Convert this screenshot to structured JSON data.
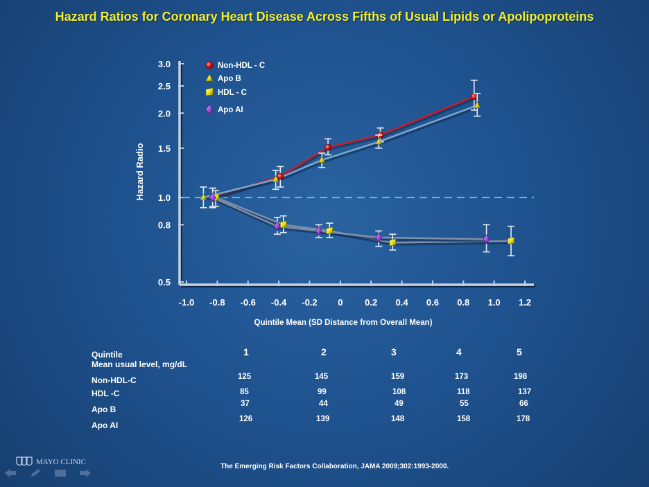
{
  "title": "Hazard Ratios for Coronary Heart Disease Across Fifths of Usual Lipids or Apolipoproteins",
  "chart_data": {
    "type": "line",
    "ylabel": "Hazard Radio",
    "xlabel": "Quintile Mean (SD Distance from Overall Mean)",
    "y_scale": "log",
    "ylim": [
      0.5,
      3.0
    ],
    "xlim": [
      -1.0,
      1.2
    ],
    "y_ticks": [
      "0.5",
      "0.8",
      "1.0",
      "1.5",
      "2.0",
      "2.5",
      "3.0"
    ],
    "y_tick_values": [
      0.5,
      0.8,
      1.0,
      1.5,
      2.0,
      2.5,
      3.0
    ],
    "x_ticks": [
      "-1.0",
      "-0.8",
      "-0.6",
      "-0.4",
      "-0.2",
      "0",
      "0.2",
      "0.4",
      "0.6",
      "0.8",
      "1.0",
      "1.2"
    ],
    "x_tick_values": [
      -1.0,
      -0.8,
      -0.6,
      -0.4,
      -0.2,
      0,
      0.2,
      0.4,
      0.6,
      0.8,
      1.0,
      1.2
    ],
    "reference_line": 1.0,
    "legend_position": "top-left",
    "series": [
      {
        "name": "Non-HDL - C",
        "marker": "circle",
        "color": "#d81e1e",
        "line_color": "#c41f2e",
        "x": [
          -0.83,
          -0.39,
          -0.08,
          0.26,
          0.87
        ],
        "y": [
          1.0,
          1.19,
          1.51,
          1.67,
          2.29
        ],
        "ci_low": [
          0.92,
          1.09,
          1.42,
          1.58,
          2.05
        ],
        "ci_high": [
          1.08,
          1.29,
          1.62,
          1.77,
          2.62
        ]
      },
      {
        "name": "Apo B",
        "marker": "triangle",
        "color": "#e8df1a",
        "line_color": "#7aa6cf",
        "x": [
          -0.89,
          -0.42,
          -0.12,
          0.25,
          0.89
        ],
        "y": [
          1.0,
          1.16,
          1.36,
          1.58,
          2.13
        ],
        "ci_low": [
          0.92,
          1.07,
          1.28,
          1.5,
          1.95
        ],
        "ci_high": [
          1.09,
          1.25,
          1.44,
          1.67,
          2.35
        ]
      },
      {
        "name": "HDL - C",
        "marker": "square",
        "color": "#e8ec1c",
        "line_color": "#7f8fa8",
        "x": [
          -0.81,
          -0.37,
          -0.07,
          0.34,
          1.11
        ],
        "y": [
          1.0,
          0.8,
          0.76,
          0.69,
          0.7
        ],
        "ci_low": [
          0.93,
          0.75,
          0.72,
          0.65,
          0.62
        ],
        "ci_high": [
          1.06,
          0.86,
          0.81,
          0.74,
          0.79
        ]
      },
      {
        "name": "Apo AI",
        "marker": "diamond",
        "color": "#a64de0",
        "line_color": "#7f8fa8",
        "x": [
          -0.83,
          -0.41,
          -0.14,
          0.25,
          0.95
        ],
        "y": [
          1.0,
          0.79,
          0.76,
          0.72,
          0.71
        ],
        "ci_low": [
          0.93,
          0.74,
          0.72,
          0.67,
          0.64
        ],
        "ci_high": [
          1.08,
          0.85,
          0.8,
          0.76,
          0.8
        ]
      }
    ]
  },
  "table": {
    "quintile_label": "Quintile",
    "mean_label": "Mean usual level, mg/dL",
    "quintiles": [
      "1",
      "2",
      "3",
      "4",
      "5"
    ],
    "rows": [
      {
        "label": "Non-HDL-C",
        "values": [
          "125",
          "145",
          "159",
          "173",
          "198"
        ]
      },
      {
        "label": "HDL -C",
        "values": [
          "85",
          "99",
          "108",
          "118",
          "137"
        ]
      },
      {
        "label": "Apo B",
        "values": [
          "37",
          "44",
          "49",
          "55",
          "66"
        ]
      },
      {
        "label": "Apo AI",
        "values": [
          "126",
          "139",
          "148",
          "158",
          "178"
        ]
      }
    ]
  },
  "logo_text": "MAYO CLINIC",
  "citation": "The Emerging  Risk Factors  Collaboration,    JAMA  2009;302:1993-2000."
}
